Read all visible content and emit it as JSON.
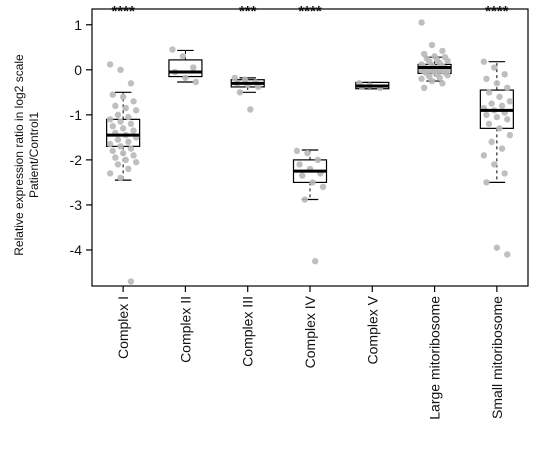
{
  "chart_data": {
    "type": "box",
    "ylabel_line1": "Relative expression ratio in log2 scale",
    "ylabel_line2": "Patient/Control1",
    "ylim": [
      -4.8,
      1.35
    ],
    "yticks": [
      -4,
      -3,
      -2,
      -1,
      0,
      1
    ],
    "colors": {
      "box": "#000000",
      "point": "#b8b8b8"
    },
    "groups": [
      {
        "name": "Complex I",
        "significance": "****",
        "q1": -1.7,
        "median": -1.45,
        "q3": -1.1,
        "whisker_low": -2.45,
        "whisker_high": -0.5,
        "points": [
          0.12,
          0.0,
          -0.3,
          -0.55,
          -0.6,
          -0.7,
          -0.8,
          -0.85,
          -0.9,
          -1.0,
          -1.05,
          -1.1,
          -1.15,
          -1.2,
          -1.25,
          -1.3,
          -1.35,
          -1.4,
          -1.45,
          -1.5,
          -1.55,
          -1.6,
          -1.65,
          -1.7,
          -1.75,
          -1.8,
          -1.85,
          -1.9,
          -1.95,
          -2.0,
          -2.05,
          -2.1,
          -2.2,
          -2.3,
          -2.4,
          -4.7
        ]
      },
      {
        "name": "Complex II",
        "significance": "",
        "q1": -0.15,
        "median": -0.05,
        "q3": 0.22,
        "whisker_low": -0.27,
        "whisker_high": 0.43,
        "points": [
          0.45,
          0.3,
          0.05,
          -0.05,
          -0.18,
          -0.27
        ]
      },
      {
        "name": "Complex III",
        "significance": "***",
        "q1": -0.38,
        "median": -0.3,
        "q3": -0.22,
        "whisker_low": -0.5,
        "whisker_high": -0.18,
        "points": [
          -0.18,
          -0.22,
          -0.28,
          -0.3,
          -0.33,
          -0.38,
          -0.5,
          -0.88
        ]
      },
      {
        "name": "Complex IV",
        "significance": "****",
        "q1": -2.5,
        "median": -2.25,
        "q3": -2.0,
        "whisker_low": -2.88,
        "whisker_high": -1.78,
        "points": [
          -1.8,
          -1.85,
          -2.0,
          -2.1,
          -2.2,
          -2.3,
          -2.35,
          -2.5,
          -2.6,
          -2.88,
          -4.25
        ]
      },
      {
        "name": "Complex V",
        "significance": "",
        "q1": -0.42,
        "median": -0.36,
        "q3": -0.28,
        "whisker_low": -0.42,
        "whisker_high": -0.28,
        "points": [
          -0.3,
          -0.35,
          -0.4,
          -0.38
        ]
      },
      {
        "name": "Large mitoribosome",
        "significance": "",
        "q1": -0.08,
        "median": 0.05,
        "q3": 0.12,
        "whisker_low": -0.25,
        "whisker_high": 0.28,
        "points": [
          1.05,
          0.55,
          0.42,
          0.35,
          0.3,
          0.28,
          0.25,
          0.22,
          0.2,
          0.18,
          0.15,
          0.12,
          0.1,
          0.08,
          0.06,
          0.05,
          0.04,
          0.03,
          0.02,
          0.01,
          0.0,
          0.0,
          -0.01,
          -0.02,
          -0.03,
          -0.04,
          -0.05,
          -0.06,
          -0.08,
          -0.1,
          -0.12,
          -0.15,
          -0.18,
          -0.2,
          -0.25,
          -0.3,
          -0.4
        ]
      },
      {
        "name": "Small mitoribosome",
        "significance": "****",
        "q1": -1.3,
        "median": -0.9,
        "q3": -0.45,
        "whisker_low": -2.5,
        "whisker_high": 0.18,
        "points": [
          0.18,
          0.05,
          -0.1,
          -0.2,
          -0.3,
          -0.4,
          -0.5,
          -0.6,
          -0.7,
          -0.75,
          -0.8,
          -0.85,
          -0.9,
          -0.95,
          -1.0,
          -1.05,
          -1.1,
          -1.2,
          -1.3,
          -1.45,
          -1.6,
          -1.75,
          -1.9,
          -2.1,
          -2.3,
          -2.5,
          -3.95,
          -4.1
        ]
      }
    ]
  }
}
